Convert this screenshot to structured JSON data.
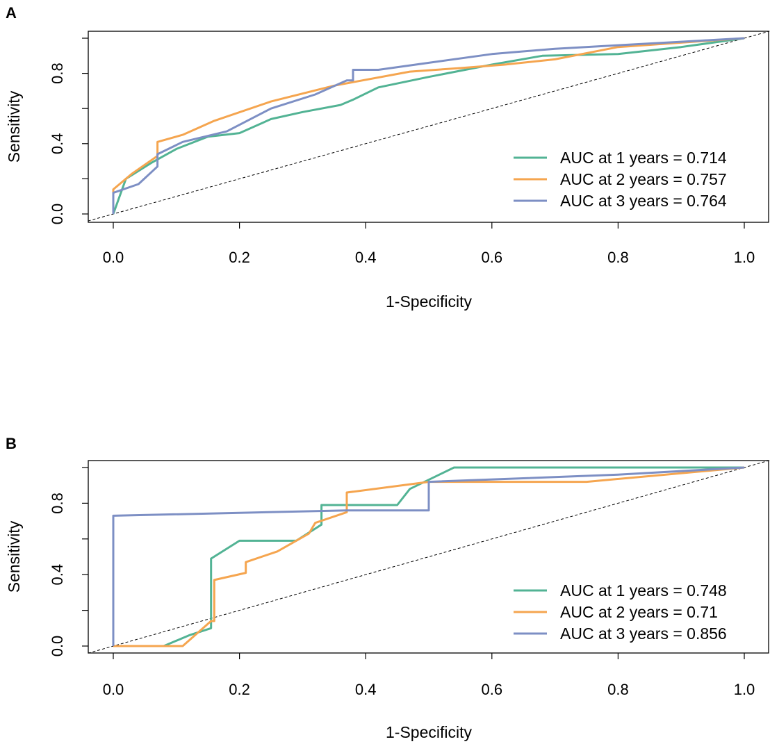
{
  "chart_data": [
    {
      "type": "line",
      "panel_label": "A",
      "xlabel": "1-Specificity",
      "ylabel": "Sensitivity",
      "xlim": [
        0.0,
        1.0
      ],
      "ylim": [
        0.0,
        1.0
      ],
      "x_ticks": [
        "0.0",
        "0.2",
        "0.4",
        "0.6",
        "0.8",
        "1.0"
      ],
      "y_ticks": [
        "0.0",
        "0.4",
        "0.8"
      ],
      "legend_position": "bottom-right",
      "reference_line": "dashed diagonal",
      "series": [
        {
          "name": "AUC at 1 years = 0.714",
          "color": "#52b394",
          "points": [
            [
              0,
              0
            ],
            [
              0.02,
              0.2
            ],
            [
              0.06,
              0.29
            ],
            [
              0.1,
              0.37
            ],
            [
              0.15,
              0.44
            ],
            [
              0.2,
              0.46
            ],
            [
              0.25,
              0.54
            ],
            [
              0.3,
              0.58
            ],
            [
              0.36,
              0.62
            ],
            [
              0.38,
              0.65
            ],
            [
              0.42,
              0.72
            ],
            [
              0.5,
              0.78
            ],
            [
              0.6,
              0.85
            ],
            [
              0.68,
              0.9
            ],
            [
              0.8,
              0.91
            ],
            [
              0.9,
              0.95
            ],
            [
              1.0,
              1.0
            ]
          ]
        },
        {
          "name": "AUC at 2 years = 0.757",
          "color": "#f5a54f",
          "points": [
            [
              0,
              0
            ],
            [
              0,
              0.14
            ],
            [
              0.03,
              0.23
            ],
            [
              0.07,
              0.33
            ],
            [
              0.07,
              0.41
            ],
            [
              0.11,
              0.45
            ],
            [
              0.16,
              0.53
            ],
            [
              0.25,
              0.64
            ],
            [
              0.35,
              0.73
            ],
            [
              0.47,
              0.81
            ],
            [
              0.55,
              0.83
            ],
            [
              0.62,
              0.85
            ],
            [
              0.7,
              0.88
            ],
            [
              0.8,
              0.95
            ],
            [
              1.0,
              1.0
            ]
          ]
        },
        {
          "name": "AUC at 3 years = 0.764",
          "color": "#7d8fc4",
          "points": [
            [
              0,
              0
            ],
            [
              0,
              0.12
            ],
            [
              0.04,
              0.17
            ],
            [
              0.07,
              0.27
            ],
            [
              0.07,
              0.34
            ],
            [
              0.11,
              0.41
            ],
            [
              0.18,
              0.47
            ],
            [
              0.25,
              0.6
            ],
            [
              0.32,
              0.68
            ],
            [
              0.37,
              0.76
            ],
            [
              0.38,
              0.76
            ],
            [
              0.38,
              0.82
            ],
            [
              0.42,
              0.82
            ],
            [
              0.5,
              0.86
            ],
            [
              0.6,
              0.91
            ],
            [
              0.7,
              0.94
            ],
            [
              0.8,
              0.96
            ],
            [
              0.9,
              0.98
            ],
            [
              1.0,
              1.0
            ]
          ]
        }
      ]
    },
    {
      "type": "line",
      "panel_label": "B",
      "xlabel": "1-Specificity",
      "ylabel": "Sensitivity",
      "xlim": [
        0.0,
        1.0
      ],
      "ylim": [
        0.0,
        1.0
      ],
      "x_ticks": [
        "0.0",
        "0.2",
        "0.4",
        "0.6",
        "0.8",
        "1.0"
      ],
      "y_ticks": [
        "0.0",
        "0.4",
        "0.8"
      ],
      "legend_position": "bottom-right",
      "reference_line": "dashed diagonal",
      "series": [
        {
          "name": "AUC at 1 years = 0.748",
          "color": "#52b394",
          "points": [
            [
              0,
              0
            ],
            [
              0.08,
              0
            ],
            [
              0.12,
              0.06
            ],
            [
              0.155,
              0.1
            ],
            [
              0.155,
              0.49
            ],
            [
              0.2,
              0.59
            ],
            [
              0.29,
              0.59
            ],
            [
              0.33,
              0.68
            ],
            [
              0.33,
              0.79
            ],
            [
              0.45,
              0.79
            ],
            [
              0.47,
              0.88
            ],
            [
              0.54,
              1.0
            ],
            [
              1.0,
              1.0
            ]
          ]
        },
        {
          "name": "AUC at 2 years = 0.71",
          "color": "#f5a54f",
          "points": [
            [
              0,
              0
            ],
            [
              0.11,
              0
            ],
            [
              0.155,
              0.14
            ],
            [
              0.16,
              0.14
            ],
            [
              0.16,
              0.37
            ],
            [
              0.21,
              0.41
            ],
            [
              0.21,
              0.47
            ],
            [
              0.26,
              0.53
            ],
            [
              0.31,
              0.63
            ],
            [
              0.32,
              0.69
            ],
            [
              0.37,
              0.75
            ],
            [
              0.37,
              0.86
            ],
            [
              0.5,
              0.92
            ],
            [
              0.75,
              0.92
            ],
            [
              1.0,
              1.0
            ]
          ]
        },
        {
          "name": "AUC at 3 years = 0.856",
          "color": "#7d8fc4",
          "points": [
            [
              0,
              0
            ],
            [
              0,
              0.73
            ],
            [
              0.37,
              0.76
            ],
            [
              0.5,
              0.76
            ],
            [
              0.5,
              0.92
            ],
            [
              0.8,
              0.96
            ],
            [
              1.0,
              1.0
            ]
          ]
        }
      ]
    }
  ]
}
